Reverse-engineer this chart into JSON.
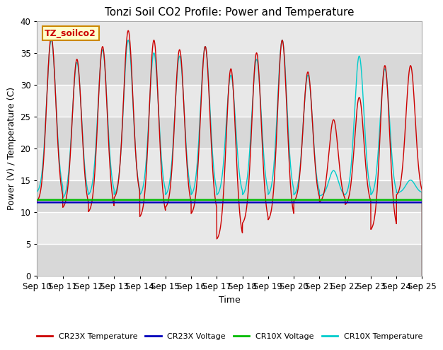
{
  "title": "Tonzi Soil CO2 Profile: Power and Temperature",
  "xlabel": "Time",
  "ylabel": "Power (V) / Temperature (C)",
  "ylim": [
    0,
    40
  ],
  "xlim": [
    0,
    15
  ],
  "x_tick_labels": [
    "Sep 10",
    "Sep 11",
    "Sep 12",
    "Sep 13",
    "Sep 14",
    "Sep 15",
    "Sep 16",
    "Sep 17",
    "Sep 18",
    "Sep 19",
    "Sep 20",
    "Sep 21",
    "Sep 22",
    "Sep 23",
    "Sep 24",
    "Sep 25"
  ],
  "watermark_text": "TZ_soilco2",
  "bg_color": "#e8e8e8",
  "cr23x_temp_color": "#cc0000",
  "cr23x_volt_color": "#0000bb",
  "cr10x_volt_color": "#00bb00",
  "cr10x_temp_color": "#00cccc",
  "cr23x_volt_value": 11.5,
  "cr10x_volt_value": 11.9,
  "legend_labels": [
    "CR23X Temperature",
    "CR23X Voltage",
    "CR10X Voltage",
    "CR10X Temperature"
  ],
  "day_peaks_cr23x": [
    37.5,
    34.0,
    36.0,
    38.5,
    37.0,
    35.5,
    36.0,
    32.5,
    35.0,
    37.0,
    32.0,
    24.5,
    28.0,
    33.0,
    33.0
  ],
  "day_mins_cr23x": [
    11.5,
    10.5,
    9.8,
    12.0,
    9.0,
    10.5,
    9.5,
    5.5,
    8.0,
    8.5,
    11.5,
    11.5,
    11.0,
    7.0,
    12.5
  ],
  "day_peaks_cr10x": [
    37.0,
    33.5,
    35.5,
    37.0,
    35.0,
    34.5,
    36.0,
    31.5,
    34.0,
    37.0,
    31.5,
    16.5,
    34.5,
    32.5,
    15.0
  ],
  "day_mins_cr10x": [
    13.0,
    12.0,
    12.5,
    12.5,
    12.5,
    12.5,
    12.5,
    12.5,
    12.5,
    12.5,
    12.5,
    12.5,
    12.5,
    12.5,
    13.0
  ]
}
